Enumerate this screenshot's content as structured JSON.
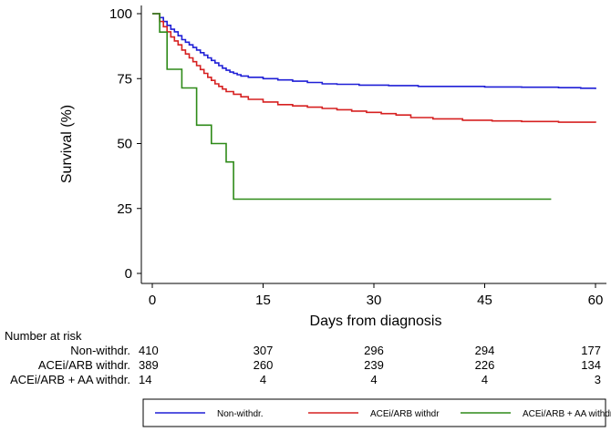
{
  "chart_data": {
    "type": "line",
    "subtype": "kaplan-meier step",
    "title": "",
    "xlabel": "Days from diagnosis",
    "ylabel": "Survival (%)",
    "xlim": [
      0,
      60
    ],
    "ylim": [
      0,
      100
    ],
    "xticks": [
      0,
      15,
      30,
      45,
      60
    ],
    "yticks": [
      0,
      25,
      50,
      75,
      100
    ],
    "grid": false,
    "legend_position": "bottom",
    "series": [
      {
        "name": "Non-withdr.",
        "color": "#1f1fd6",
        "x": [
          0,
          1,
          1.5,
          2,
          2.5,
          3,
          3.5,
          4,
          4.5,
          5,
          5.5,
          6,
          6.5,
          7,
          7.5,
          8,
          8.5,
          9,
          9.5,
          10,
          10.5,
          11,
          11.5,
          12,
          13,
          15,
          17,
          19,
          21,
          23,
          25,
          28,
          32,
          36,
          40,
          45,
          50,
          55,
          58,
          60
        ],
        "y": [
          100,
          98.5,
          97,
          95.5,
          94,
          93,
          91.5,
          90,
          89,
          88,
          87,
          86,
          85,
          84,
          83,
          82,
          81,
          80,
          79,
          78.2,
          77.5,
          77,
          76.5,
          76,
          75.5,
          75,
          74.5,
          74,
          73.5,
          73,
          72.8,
          72.5,
          72.3,
          72,
          72,
          71.8,
          71.7,
          71.5,
          71.3,
          71
        ]
      },
      {
        "name": "ACEi/ARB withdr",
        "color": "#d62020",
        "x": [
          0,
          1,
          1.5,
          2,
          2.5,
          3,
          3.5,
          4,
          4.5,
          5,
          5.5,
          6,
          6.5,
          7,
          7.5,
          8,
          8.5,
          9,
          9.5,
          10,
          11,
          12,
          13,
          15,
          17,
          19,
          21,
          23,
          25,
          27,
          29,
          31,
          33,
          35,
          38,
          42,
          46,
          50,
          55,
          60
        ],
        "y": [
          100,
          97,
          95,
          93,
          91,
          89.5,
          88,
          86,
          84.5,
          83,
          81.5,
          80,
          78.5,
          77,
          75.5,
          74.3,
          73,
          72,
          71,
          70,
          69,
          68,
          67,
          66,
          65,
          64.5,
          64,
          63.5,
          63,
          62.5,
          62,
          61.5,
          61,
          60,
          59.5,
          59,
          58.7,
          58.5,
          58.2,
          58
        ]
      },
      {
        "name": "ACEi/ARB + AA withdr.",
        "color": "#2e8a18",
        "x": [
          0,
          1,
          2,
          4,
          6,
          8,
          10,
          11,
          54
        ],
        "y": [
          100,
          92.9,
          78.6,
          71.4,
          57.1,
          50,
          42.9,
          28.6,
          28.6
        ]
      }
    ],
    "risk_table": {
      "title": "Number at risk",
      "timepoints": [
        0,
        15,
        30,
        45,
        60
      ],
      "rows": [
        {
          "label": "Non-withdr.",
          "values": [
            "410",
            "307",
            "296",
            "294",
            "177"
          ]
        },
        {
          "label": "ACEi/ARB withdr.",
          "values": [
            "389",
            "260",
            "239",
            "226",
            "134"
          ]
        },
        {
          "label": "ACEi/ARB + AA withdr.",
          "values": [
            "14",
            "4",
            "4",
            "4",
            "3"
          ]
        }
      ]
    }
  }
}
